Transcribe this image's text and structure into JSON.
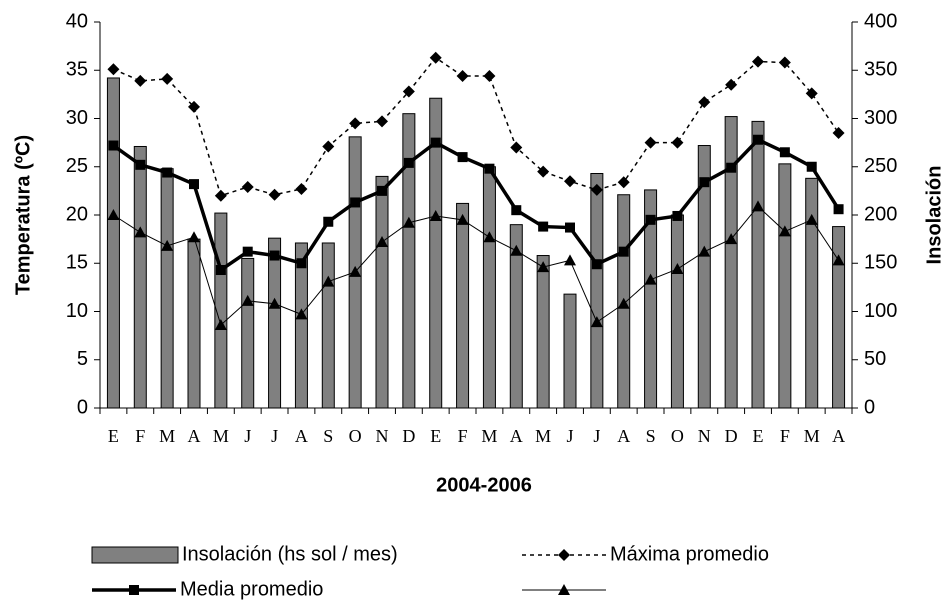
{
  "chart_data": {
    "type": "combo",
    "xlabel": "2004-2006",
    "ylabel": "Temperatura (ºC)",
    "y2label": "Insolación",
    "categories": [
      "E",
      "F",
      "M",
      "A",
      "M",
      "J",
      "J",
      "A",
      "S",
      "O",
      "N",
      "D",
      "E",
      "F",
      "M",
      "A",
      "M",
      "J",
      "J",
      "A",
      "S",
      "O",
      "N",
      "D",
      "E",
      "F",
      "M",
      "A"
    ],
    "ylim": [
      0,
      40
    ],
    "yticks": [
      0,
      5,
      10,
      15,
      20,
      25,
      30,
      35,
      40
    ],
    "y2lim": [
      0,
      400
    ],
    "y2ticks": [
      0,
      50,
      100,
      150,
      200,
      250,
      300,
      350,
      400
    ],
    "series": [
      {
        "name": "Insolación (hs sol / mes)",
        "type": "bar",
        "axis": "y2",
        "color": "#808080",
        "values": [
          342,
          271,
          248,
          175,
          202,
          155,
          176,
          171,
          171,
          281,
          240,
          305,
          321,
          212,
          250,
          190,
          158,
          118,
          243,
          221,
          226,
          200,
          272,
          302,
          297,
          253,
          238,
          188
        ]
      },
      {
        "name": "Máxima promedio",
        "type": "line",
        "marker": "diamond",
        "dash": true,
        "color": "#000000",
        "values": [
          35.1,
          33.9,
          34.1,
          31.2,
          22,
          22.9,
          22.1,
          22.7,
          27.1,
          29.5,
          29.7,
          32.8,
          36.3,
          34.4,
          34.4,
          27,
          24.5,
          23.5,
          22.6,
          23.4,
          27.5,
          27.5,
          31.7,
          33.5,
          35.9,
          35.8,
          32.6,
          28.5
        ]
      },
      {
        "name": "Media promedio",
        "type": "line",
        "marker": "square",
        "dash": false,
        "color": "#000000",
        "values": [
          27.2,
          25.2,
          24.4,
          23.2,
          14.3,
          16.2,
          15.8,
          15,
          19.3,
          21.3,
          22.5,
          25.4,
          27.5,
          26,
          24.8,
          20.5,
          18.8,
          18.7,
          14.9,
          16.2,
          19.5,
          19.9,
          23.4,
          24.9,
          27.8,
          26.5,
          25,
          20.6
        ]
      },
      {
        "type": "line",
        "marker": "triangle",
        "dash": false,
        "color": "#000000",
        "values": [
          20,
          18.2,
          16.8,
          17.7,
          8.6,
          11.1,
          10.8,
          9.7,
          13.1,
          14.1,
          17.2,
          19.2,
          19.9,
          19.5,
          17.7,
          16.3,
          14.6,
          15.3,
          8.9,
          10.8,
          13.3,
          14.4,
          16.2,
          17.5,
          20.9,
          18.3,
          19.5,
          15.3
        ]
      }
    ]
  }
}
